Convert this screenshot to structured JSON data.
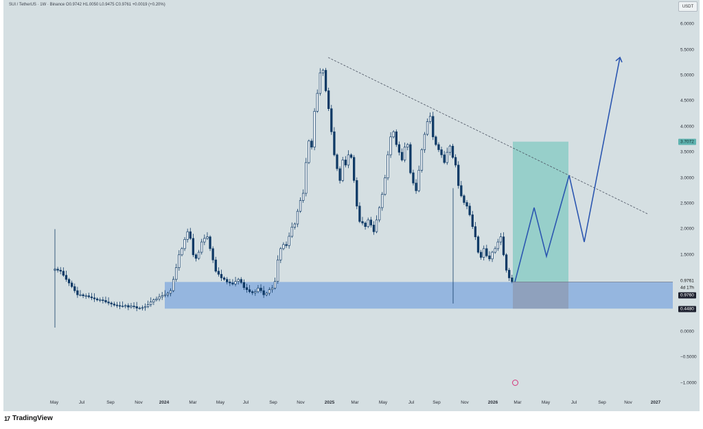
{
  "header": {
    "symbol_line": "SUI / TetherUS · 1W · Binance  O0.9742  H1.0050  L0.9475  C0.9761  +0.0019 (+0.20%)",
    "currency": "USDT"
  },
  "axes": {
    "y_labels": [
      "6.0000",
      "5.5000",
      "5.0000",
      "4.5000",
      "4.0000",
      "3.5000",
      "3.0000",
      "2.5000",
      "2.0000",
      "1.5000",
      "0.0000",
      "−0.5000",
      "−1.0000"
    ],
    "x_labels": [
      "May",
      "Jul",
      "Sep",
      "Nov",
      "2024",
      "Mar",
      "May",
      "Jul",
      "Sep",
      "Nov",
      "2025",
      "Mar",
      "May",
      "Jul",
      "Sep",
      "Nov",
      "2026",
      "Mar",
      "May",
      "Jul",
      "Sep",
      "Nov",
      "2027"
    ]
  },
  "price_badges": {
    "target": "3.7072",
    "last": "0.9761",
    "countdown": "4d 17h",
    "price": "0.9760",
    "support": "0.4480"
  },
  "footer": {
    "brand_mark": "17",
    "brand": "TradingView"
  },
  "colors": {
    "background": "#d5dfe2",
    "candle": "#0f3a66",
    "support_zone": "#7fa8de",
    "profit_zone": "#7cc7c0",
    "projection": "#2b56b0"
  },
  "chart_data": {
    "type": "candlestick",
    "title": "SUI / TetherUS · 1W · Binance",
    "ylim": [
      -1.1,
      6.4
    ],
    "support_zone": [
      0.45,
      0.97
    ],
    "trendline": {
      "from_price": 5.35,
      "to_price": 2.3
    },
    "long_position": {
      "entry": 0.97,
      "target": 3.7072,
      "stop": 0.448
    },
    "projection_path": [
      0.97,
      2.42,
      1.47,
      3.05,
      1.75,
      5.35
    ],
    "closes": [
      1.22,
      1.2,
      1.18,
      1.1,
      1.02,
      0.95,
      0.88,
      0.8,
      0.72,
      0.72,
      0.7,
      0.7,
      0.68,
      0.66,
      0.64,
      0.62,
      0.62,
      0.61,
      0.58,
      0.56,
      0.54,
      0.52,
      0.51,
      0.5,
      0.5,
      0.51,
      0.48,
      0.5,
      0.49,
      0.46,
      0.46,
      0.47,
      0.49,
      0.53,
      0.58,
      0.62,
      0.64,
      0.68,
      0.7,
      0.72,
      0.75,
      0.8,
      1.02,
      1.25,
      1.5,
      1.62,
      1.8,
      1.95,
      1.82,
      1.5,
      1.43,
      1.55,
      1.75,
      1.82,
      1.85,
      1.62,
      1.4,
      1.18,
      1.12,
      1.05,
      1.02,
      0.97,
      0.95,
      0.93,
      0.98,
      1.02,
      0.96,
      0.86,
      0.82,
      0.78,
      0.76,
      0.78,
      0.85,
      0.8,
      0.72,
      0.75,
      0.82,
      0.85,
      0.98,
      1.4,
      1.62,
      1.7,
      1.68,
      1.86,
      2.04,
      2.1,
      2.35,
      2.56,
      2.7,
      3.3,
      3.72,
      3.6,
      4.3,
      4.65,
      5.05,
      5.1,
      4.7,
      4.35,
      3.9,
      3.45,
      3.18,
      2.95,
      3.35,
      3.25,
      3.45,
      3.4,
      2.95,
      2.45,
      2.15,
      2.12,
      2.05,
      2.18,
      2.08,
      1.95,
      2.18,
      2.42,
      2.68,
      3.0,
      3.45,
      3.8,
      3.9,
      3.65,
      3.5,
      3.35,
      3.6,
      3.65,
      3.1,
      2.9,
      2.75,
      3.15,
      3.55,
      3.85,
      4.1,
      4.2,
      3.8,
      3.65,
      3.55,
      3.45,
      3.3,
      3.5,
      3.62,
      3.4,
      3.25,
      2.85,
      2.65,
      2.52,
      2.45,
      2.28,
      2.05,
      1.85,
      1.55,
      1.45,
      1.62,
      1.48,
      1.42,
      1.55,
      1.62,
      1.75,
      1.85,
      1.5,
      1.2,
      1.05,
      0.9761
    ]
  }
}
